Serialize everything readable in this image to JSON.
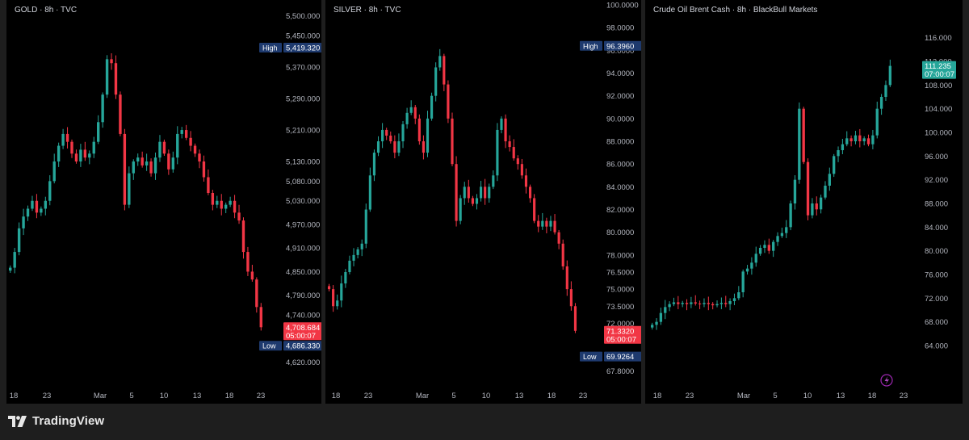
{
  "footer": {
    "brand": "TradingView",
    "logo_icon": "tradingview-logo-icon"
  },
  "colors": {
    "up": "#26a69a",
    "down": "#f23645",
    "background": "#000000",
    "text": "#b2b5be",
    "tag_bg": "#1e3a6e"
  },
  "chart_data": [
    {
      "type": "candlestick",
      "title": "GOLD · 8h · TVC",
      "ylim": [
        4580,
        5520
      ],
      "yticks": [
        {
          "value": 5500,
          "label": "5,500.000"
        },
        {
          "value": 5450,
          "label": "5,450.000"
        },
        {
          "value": 5370,
          "label": "5,370.000"
        },
        {
          "value": 5290,
          "label": "5,290.000"
        },
        {
          "value": 5210,
          "label": "5,210.000"
        },
        {
          "value": 5130,
          "label": "5,130.000"
        },
        {
          "value": 5080,
          "label": "5,080.000"
        },
        {
          "value": 5030,
          "label": "5,030.000"
        },
        {
          "value": 4970,
          "label": "4,970.000"
        },
        {
          "value": 4910,
          "label": "4,910.000"
        },
        {
          "value": 4850,
          "label": "4,850.000"
        },
        {
          "value": 4790,
          "label": "4,790.000"
        },
        {
          "value": 4740,
          "label": "4,740.000"
        },
        {
          "value": 4620,
          "label": "4,620.000"
        }
      ],
      "xlabels": [
        "18",
        "23",
        "Mar",
        "5",
        "10",
        "13",
        "18",
        "23"
      ],
      "high": {
        "label": "High",
        "value": "5,419.320",
        "y": 5419.32
      },
      "low": {
        "label": "Low",
        "value": "4,686.330",
        "y": 4686.33
      },
      "last": {
        "price": "4,708.684",
        "countdown": "05:00:07",
        "y": 4708.684
      },
      "closes": [
        4860,
        4900,
        4960,
        4990,
        5010,
        5030,
        5000,
        5010,
        5030,
        5080,
        5130,
        5170,
        5200,
        5180,
        5150,
        5130,
        5160,
        5140,
        5150,
        5180,
        5230,
        5300,
        5390,
        5380,
        5300,
        5200,
        5020,
        5100,
        5130,
        5140,
        5120,
        5130,
        5100,
        5140,
        5180,
        5150,
        5110,
        5140,
        5200,
        5210,
        5190,
        5170,
        5150,
        5130,
        5090,
        5050,
        5020,
        5030,
        5010,
        5020,
        5030,
        5000,
        4980,
        4900,
        4850,
        4830,
        4760,
        4708.684
      ]
    },
    {
      "type": "candlestick",
      "title": "SILVER · 8h · TVC",
      "ylim": [
        67.2,
        100.0
      ],
      "yticks": [
        {
          "value": 100.0,
          "label": "100.0000"
        },
        {
          "value": 98.0,
          "label": "98.0000"
        },
        {
          "value": 96.0,
          "label": "96.0000"
        },
        {
          "value": 94.0,
          "label": "94.0000"
        },
        {
          "value": 92.0,
          "label": "92.0000"
        },
        {
          "value": 90.0,
          "label": "90.0000"
        },
        {
          "value": 88.0,
          "label": "88.0000"
        },
        {
          "value": 86.0,
          "label": "86.0000"
        },
        {
          "value": 84.0,
          "label": "84.0000"
        },
        {
          "value": 82.0,
          "label": "82.0000"
        },
        {
          "value": 80.0,
          "label": "80.0000"
        },
        {
          "value": 78.0,
          "label": "78.0000"
        },
        {
          "value": 76.5,
          "label": "76.5000"
        },
        {
          "value": 75.0,
          "label": "75.0000"
        },
        {
          "value": 73.5,
          "label": "73.5000"
        },
        {
          "value": 72.0,
          "label": "72.0000"
        },
        {
          "value": 69.1,
          "label": "69.1000"
        },
        {
          "value": 67.8,
          "label": "67.8000"
        }
      ],
      "xlabels": [
        "18",
        "23",
        "Mar",
        "5",
        "10",
        "13",
        "18",
        "23"
      ],
      "high": {
        "label": "High",
        "value": "96.3960",
        "y": 96.396
      },
      "low": {
        "label": "Low",
        "value": "69.9264",
        "y": 69.9264
      },
      "last": {
        "price": "71.3320",
        "countdown": "05:00:07",
        "y": 71.332
      },
      "closes": [
        75.0,
        73.5,
        74.0,
        75.5,
        76.5,
        77.5,
        78.0,
        78.5,
        79.0,
        82.0,
        85.0,
        87.0,
        88.0,
        89.0,
        88.5,
        88.0,
        87.0,
        88.0,
        89.5,
        90.5,
        91.0,
        90.0,
        88.0,
        87.0,
        90.0,
        92.0,
        94.5,
        95.5,
        93.0,
        90.0,
        86.0,
        81.0,
        83.0,
        84.0,
        83.0,
        82.5,
        83.0,
        84.0,
        83.0,
        84.0,
        85.0,
        89.0,
        90.0,
        88.0,
        87.5,
        86.5,
        86.0,
        85.0,
        84.0,
        83.0,
        81.0,
        80.5,
        81.0,
        80.5,
        81.0,
        80.0,
        79.0,
        77.0,
        75.0,
        73.5,
        71.332
      ]
    },
    {
      "type": "candlestick",
      "title": "Crude Oil Brent Cash · 8h · BlackBull Markets",
      "ylim": [
        61.0,
        118.0
      ],
      "yticks": [
        {
          "value": 116,
          "label": "116.000"
        },
        {
          "value": 112,
          "label": "112.000"
        },
        {
          "value": 108,
          "label": "108.000"
        },
        {
          "value": 104,
          "label": "104.000"
        },
        {
          "value": 100,
          "label": "100.000"
        },
        {
          "value": 96,
          "label": "96.000"
        },
        {
          "value": 92,
          "label": "92.000"
        },
        {
          "value": 88,
          "label": "88.000"
        },
        {
          "value": 84,
          "label": "84.000"
        },
        {
          "value": 80,
          "label": "80.000"
        },
        {
          "value": 76,
          "label": "76.000"
        },
        {
          "value": 72,
          "label": "72.000"
        },
        {
          "value": 68,
          "label": "68.000"
        },
        {
          "value": 64,
          "label": "64.000"
        }
      ],
      "xlabels": [
        "18",
        "23",
        "Mar",
        "5",
        "10",
        "13",
        "18",
        "23"
      ],
      "last": {
        "price": "111.235",
        "countdown": "07:00:07",
        "y": 111.235
      },
      "alert_icon": "lightning-icon",
      "closes": [
        67.5,
        68.0,
        69.5,
        70.5,
        71.0,
        71.3,
        71.0,
        71.2,
        71.0,
        71.3,
        71.1,
        71.0,
        71.2,
        71.0,
        70.8,
        71.0,
        71.2,
        71.0,
        71.5,
        72.0,
        73.0,
        76.5,
        77.0,
        78.0,
        79.5,
        80.5,
        81.0,
        80.0,
        81.5,
        82.5,
        83.0,
        84.0,
        88.0,
        92.0,
        104.0,
        95.0,
        86.0,
        88.0,
        87.0,
        89.0,
        91.0,
        93.0,
        96.0,
        97.0,
        98.0,
        99.0,
        98.5,
        99.5,
        98.5,
        99.0,
        98.0,
        99.5,
        104.0,
        106.0,
        108.0,
        111.235
      ]
    }
  ]
}
